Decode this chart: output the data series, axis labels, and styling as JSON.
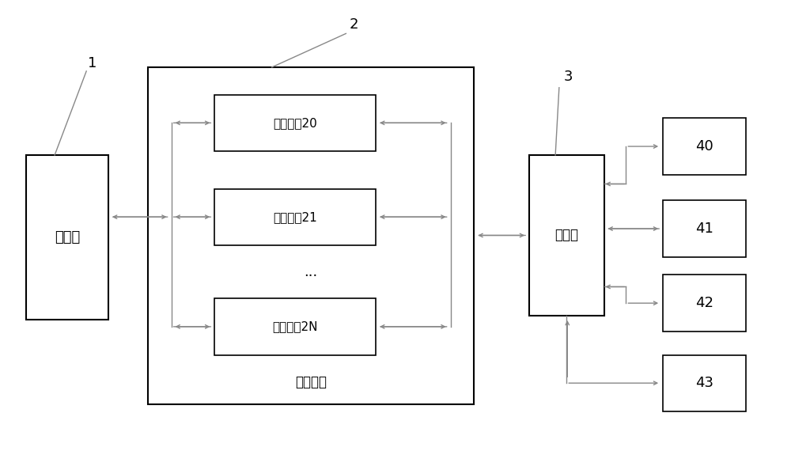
{
  "bg_color": "#ffffff",
  "box_edge_color": "#000000",
  "box_face_color": "#ffffff",
  "arrow_color": "#888888",
  "text_color": "#000000",
  "label_1": "1",
  "label_2": "2",
  "label_3": "3",
  "antenna_label": "天线体",
  "adj_component_label": "调节组件",
  "power_divider_label": "功分器",
  "unit20_label": "调节单元20",
  "unit21_label": "调节单元21",
  "unitN_label": "调节单元2N",
  "dots_label": "...",
  "box40_label": "40",
  "box41_label": "41",
  "box42_label": "42",
  "box43_label": "43",
  "figsize": [
    10.0,
    5.89
  ],
  "dpi": 100
}
